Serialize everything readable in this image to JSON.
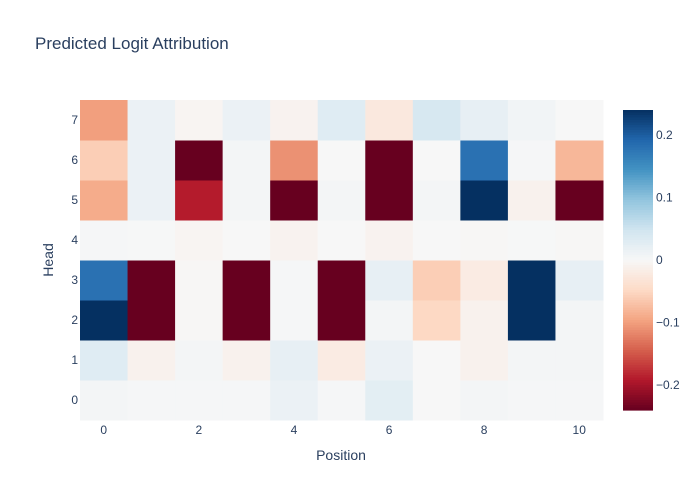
{
  "chart_data": {
    "type": "heatmap",
    "title": "Predicted Logit Attribution",
    "xlabel": "Position",
    "ylabel": "Head",
    "x": [
      0,
      1,
      2,
      3,
      4,
      5,
      6,
      7,
      8,
      9,
      10
    ],
    "y": [
      0,
      1,
      2,
      3,
      4,
      5,
      6,
      7
    ],
    "x_tick_labels": [
      "0",
      "2",
      "4",
      "6",
      "8",
      "10"
    ],
    "y_tick_labels": [
      "0",
      "1",
      "2",
      "3",
      "4",
      "5",
      "6",
      "7"
    ],
    "z": [
      [
        0.005,
        0.002,
        0.003,
        0.002,
        0.015,
        0.002,
        0.025,
        0.0,
        0.005,
        0.003,
        0.002
      ],
      [
        0.03,
        -0.01,
        0.005,
        -0.01,
        0.02,
        -0.02,
        0.015,
        0.0,
        -0.01,
        0.005,
        0.005
      ],
      [
        0.24,
        -0.24,
        -0.002,
        -0.24,
        0.003,
        -0.24,
        0.005,
        -0.05,
        -0.01,
        0.24,
        0.005
      ],
      [
        0.18,
        -0.24,
        -0.002,
        -0.24,
        0.003,
        -0.24,
        0.02,
        -0.06,
        -0.02,
        0.24,
        0.02
      ],
      [
        0.002,
        0.001,
        -0.005,
        0.0,
        -0.008,
        0.0,
        -0.008,
        0.0,
        -0.002,
        0.001,
        -0.002
      ],
      [
        -0.09,
        0.015,
        -0.19,
        0.005,
        -0.24,
        0.005,
        -0.24,
        0.005,
        0.24,
        -0.01,
        -0.24
      ],
      [
        -0.06,
        0.015,
        -0.24,
        0.005,
        -0.11,
        0.0,
        -0.24,
        0.0,
        0.18,
        0.002,
        -0.08
      ],
      [
        -0.1,
        0.015,
        -0.005,
        0.015,
        -0.008,
        0.03,
        -0.025,
        0.04,
        0.02,
        0.008,
        0.0
      ]
    ],
    "colorbar": {
      "zmin": -0.24,
      "zmax": 0.24,
      "ticks": [
        0.2,
        0.1,
        0,
        -0.1,
        -0.2
      ],
      "tick_labels": [
        "0.2",
        "0.1",
        "0",
        "−0.1",
        "−0.2"
      ]
    },
    "colorscale": "RdBu",
    "grid": false
  }
}
